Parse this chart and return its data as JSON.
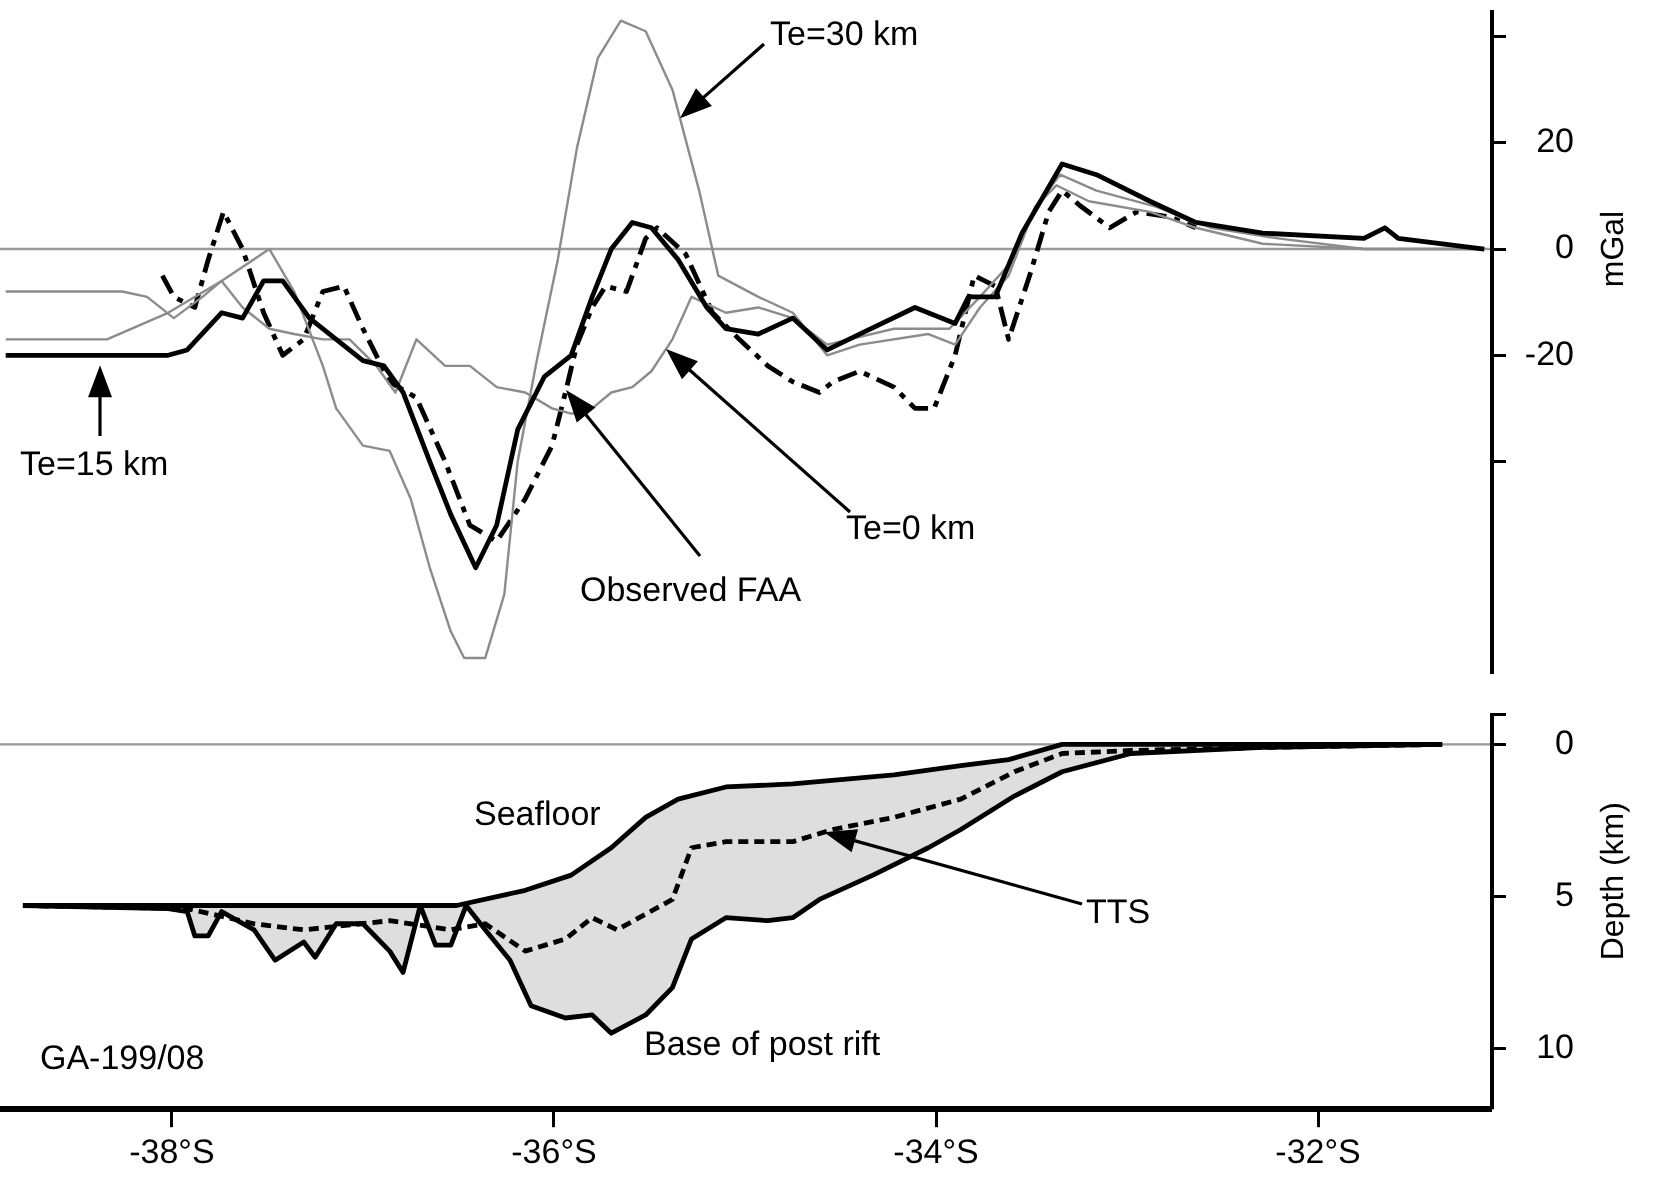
{
  "chart_data": [
    {
      "type": "line",
      "ylabel": "mGal",
      "xlim": [
        -38.9,
        -31.1
      ],
      "ylim": [
        -80,
        45
      ],
      "yticks": [
        {
          "value": -40,
          "label": null
        },
        -20,
        0,
        20,
        {
          "value": 40,
          "label": null
        }
      ],
      "tick_labels": "y",
      "ref_lines": [
        {
          "axis": "y",
          "value": 0,
          "color": "#999999"
        }
      ],
      "annotations": [
        "Te=30 km"
      ],
      "series": [
        {
          "name": "Te=15 km",
          "color": "#000000",
          "x": [
            -38.87,
            -38.13,
            -38.02,
            -37.92,
            -37.74,
            -37.63,
            -37.52,
            -37.42,
            -37.28,
            -37.14,
            -37.0,
            -36.89,
            -36.79,
            -36.65,
            -36.54,
            -36.41,
            -36.3,
            -36.19,
            -36.05,
            -35.91,
            -35.8,
            -35.7,
            -35.59,
            -35.49,
            -35.35,
            -35.2,
            -35.1,
            -34.93,
            -34.75,
            -34.57,
            -34.4,
            -34.11,
            -33.9,
            -33.83,
            -33.69,
            -33.55,
            -33.34,
            -33.16,
            -32.88,
            -32.64,
            -32.29,
            -31.76,
            -31.65,
            -31.58,
            -31.13
          ],
          "values": [
            -20,
            -20,
            -20,
            -19,
            -12,
            -13,
            -6,
            -6,
            -13,
            -17,
            -21,
            -22,
            -27,
            -40,
            -50,
            -60,
            -52,
            -34,
            -24,
            -20,
            -9,
            0,
            5,
            4,
            -2,
            -11,
            -15,
            -16,
            -13,
            -19,
            -16,
            -11,
            -14,
            -9,
            -9,
            3,
            16,
            14,
            9,
            5,
            3,
            2,
            4,
            2,
            0
          ]
        },
        {
          "color": "#8c8c8c",
          "x": [
            -38.87,
            -38.34,
            -38.02,
            -37.74,
            -37.49,
            -37.36,
            -37.21,
            -37.14,
            -37.0,
            -36.86,
            -36.75,
            -36.65,
            -36.54,
            -36.47,
            -36.36,
            -36.26,
            -36.19,
            -36.09,
            -35.98,
            -35.88,
            -35.77,
            -35.65,
            -35.52,
            -35.38,
            -35.24,
            -35.14,
            -34.93,
            -34.75,
            -34.57,
            -34.4,
            -34.04,
            -33.9,
            -33.77,
            -33.62,
            -33.48,
            -33.37,
            -33.2,
            -32.88,
            -32.64,
            -32.29,
            -31.76,
            -31.13
          ],
          "values": [
            -17,
            -17,
            -12,
            -6,
            0,
            -8,
            -22,
            -30,
            -37,
            -38,
            -47,
            -60,
            -72,
            -77,
            -77,
            -65,
            -40,
            -21,
            -2,
            19,
            36,
            43,
            41,
            30,
            11,
            -5,
            -9,
            -12,
            -20,
            -18,
            -16,
            -18,
            -11,
            -5,
            8,
            12,
            9,
            7,
            4,
            1,
            0,
            0
          ]
        },
        {
          "name": "Te=0 km",
          "color": "#8c8c8c",
          "x": [
            -38.87,
            -38.26,
            -38.13,
            -37.99,
            -37.84,
            -37.74,
            -37.63,
            -37.49,
            -37.36,
            -37.21,
            -37.07,
            -36.93,
            -36.83,
            -36.72,
            -36.57,
            -36.44,
            -36.3,
            -36.15,
            -36.01,
            -35.91,
            -35.8,
            -35.7,
            -35.59,
            -35.49,
            -35.38,
            -35.28,
            -35.1,
            -34.93,
            -34.75,
            -34.57,
            -34.22,
            -33.93,
            -33.77,
            -33.62,
            -33.48,
            -33.35,
            -33.16,
            -32.85,
            -32.56,
            -32.21,
            -31.76,
            -31.13
          ],
          "values": [
            -8,
            -8,
            -9,
            -13,
            -9,
            -6,
            -11,
            -15,
            -16,
            -17,
            -17,
            -22,
            -27,
            -17,
            -22,
            -22,
            -26,
            -27,
            -30,
            -31,
            -30,
            -27,
            -26,
            -23,
            -17,
            -9,
            -12,
            -11,
            -13,
            -18,
            -15,
            -15,
            -9,
            -3,
            8,
            14,
            11,
            8,
            4,
            2,
            0,
            0
          ]
        },
        {
          "name": "Observed FAA",
          "color": "#000000",
          "line_style": "dashdot",
          "x": [
            -38.05,
            -37.99,
            -37.88,
            -37.81,
            -37.73,
            -37.63,
            -37.52,
            -37.42,
            -37.31,
            -37.21,
            -37.1,
            -37.0,
            -36.86,
            -36.72,
            -36.57,
            -36.44,
            -36.3,
            -36.15,
            -36.01,
            -35.94,
            -35.88,
            -35.8,
            -35.73,
            -35.62,
            -35.52,
            -35.46,
            -35.31,
            -35.17,
            -35.03,
            -34.88,
            -34.75,
            -34.61,
            -34.54,
            -34.4,
            -34.22,
            -34.11,
            -34.01,
            -33.9,
            -33.8,
            -33.69,
            -33.62,
            -33.51,
            -33.41,
            -33.34,
            -33.24,
            -33.09,
            -32.95,
            -32.77,
            -32.64
          ],
          "values": [
            -5,
            -9,
            -11,
            -2,
            7,
            0,
            -12,
            -20,
            -17,
            -8,
            -7,
            -15,
            -25,
            -28,
            -40,
            -52,
            -55,
            -47,
            -37,
            -27,
            -18,
            -11,
            -7,
            -8,
            2,
            4,
            -1,
            -12,
            -17,
            -22,
            -25,
            -27,
            -25,
            -23,
            -26,
            -30,
            -30,
            -20,
            -5,
            -7,
            -17,
            -5,
            7,
            11,
            8,
            4,
            7,
            6,
            4
          ]
        }
      ]
    },
    {
      "type": "line",
      "ylabel": "Depth (km)",
      "xlim": [
        -38.9,
        -31.1
      ],
      "xticks": [
        {
          "value": -38,
          "label": "-38°S"
        },
        {
          "value": -36,
          "label": "-36°S"
        },
        {
          "value": -34,
          "label": "-34°S"
        },
        {
          "value": -32,
          "label": "-32°S"
        }
      ],
      "ylim": [
        12,
        -1
      ],
      "yticks": [
        {
          "value": -1,
          "label": null
        },
        0,
        5,
        10
      ],
      "ref_lines": [
        {
          "axis": "y",
          "value": 0,
          "color": "#999999"
        }
      ],
      "annotations": [
        "GA-199/08",
        "TTS"
      ],
      "series": [
        {
          "name": "Seafloor",
          "color": "#000000",
          "x": [
            -38.78,
            -36.51,
            -36.15,
            -35.91,
            -35.7,
            -35.52,
            -35.35,
            -35.1,
            -34.75,
            -34.22,
            -33.87,
            -33.62,
            -33.34,
            -31.35
          ],
          "values": [
            5.3,
            5.3,
            4.8,
            4.3,
            3.4,
            2.4,
            1.8,
            1.4,
            1.3,
            1.0,
            0.7,
            0.5,
            0,
            0
          ]
        },
        {
          "color": "#000000",
          "line_style": "dashed",
          "x": [
            -38.78,
            -37.92,
            -37.57,
            -37.31,
            -36.86,
            -36.54,
            -36.36,
            -36.15,
            -35.94,
            -35.8,
            -35.67,
            -35.38,
            -35.28,
            -35.1,
            -34.75,
            -34.54,
            -34.22,
            -33.87,
            -33.59,
            -33.34,
            -32.98,
            -32.29,
            -31.35
          ],
          "values": [
            5.3,
            5.4,
            5.9,
            6.1,
            5.8,
            6.1,
            5.9,
            6.8,
            6.4,
            5.7,
            6.1,
            5.1,
            3.4,
            3.2,
            3.2,
            2.8,
            2.4,
            1.8,
            0.9,
            0.3,
            0.2,
            0.1,
            0
          ]
        },
        {
          "name": "Base of post rift",
          "color": "#000000",
          "lower": [
            5.3,
            5.3,
            5.3,
            5.3,
            5.3,
            5.3,
            5.3,
            5.3,
            5.3,
            5.3,
            5.3,
            5.3,
            5.3,
            5.3,
            5.3,
            5.3,
            5.3,
            5.3,
            5.1,
            4.9,
            4.8,
            4.4,
            3.8,
            3.4,
            2.4,
            1.9,
            1.6,
            1.4,
            1.3,
            1.3,
            1.2,
            1.1,
            0.9,
            0.7,
            0.4,
            0,
            0,
            0,
            0
          ],
          "upper": [
            5.3,
            5.4,
            5.5,
            6.3,
            6.3,
            5.5,
            6.1,
            7.1,
            6.5,
            7.0,
            5.9,
            5.9,
            6.8,
            7.5,
            5.3,
            6.6,
            6.6,
            5.3,
            6.1,
            7.1,
            8.6,
            9.0,
            8.9,
            9.5,
            8.9,
            8.0,
            6.4,
            5.7,
            5.8,
            5.7,
            5.1,
            4.3,
            3.4,
            2.8,
            1.7,
            0.9,
            0.3,
            0.1,
            0
          ],
          "x": [
            -38.78,
            -38.02,
            -37.92,
            -37.88,
            -37.81,
            -37.74,
            -37.57,
            -37.46,
            -37.31,
            -37.25,
            -37.14,
            -37.0,
            -36.86,
            -36.79,
            -36.7,
            -36.62,
            -36.54,
            -36.46,
            -36.36,
            -36.23,
            -36.12,
            -35.94,
            -35.8,
            -35.7,
            -35.52,
            -35.38,
            -35.28,
            -35.1,
            -34.88,
            -34.75,
            -34.61,
            -34.33,
            -34.04,
            -33.87,
            -33.59,
            -33.34,
            -32.98,
            -32.29,
            -31.35
          ],
          "values": [
            5.3,
            5.4,
            5.5,
            6.3,
            6.3,
            5.5,
            6.1,
            7.1,
            6.5,
            7.0,
            5.9,
            5.9,
            6.8,
            7.5,
            5.3,
            6.6,
            6.6,
            5.3,
            6.1,
            7.1,
            8.6,
            9.0,
            8.9,
            9.5,
            8.9,
            8.0,
            6.4,
            5.7,
            5.8,
            5.7,
            5.1,
            4.3,
            3.4,
            2.8,
            1.7,
            0.9,
            0.3,
            0.1,
            0
          ]
        }
      ]
    }
  ]
}
